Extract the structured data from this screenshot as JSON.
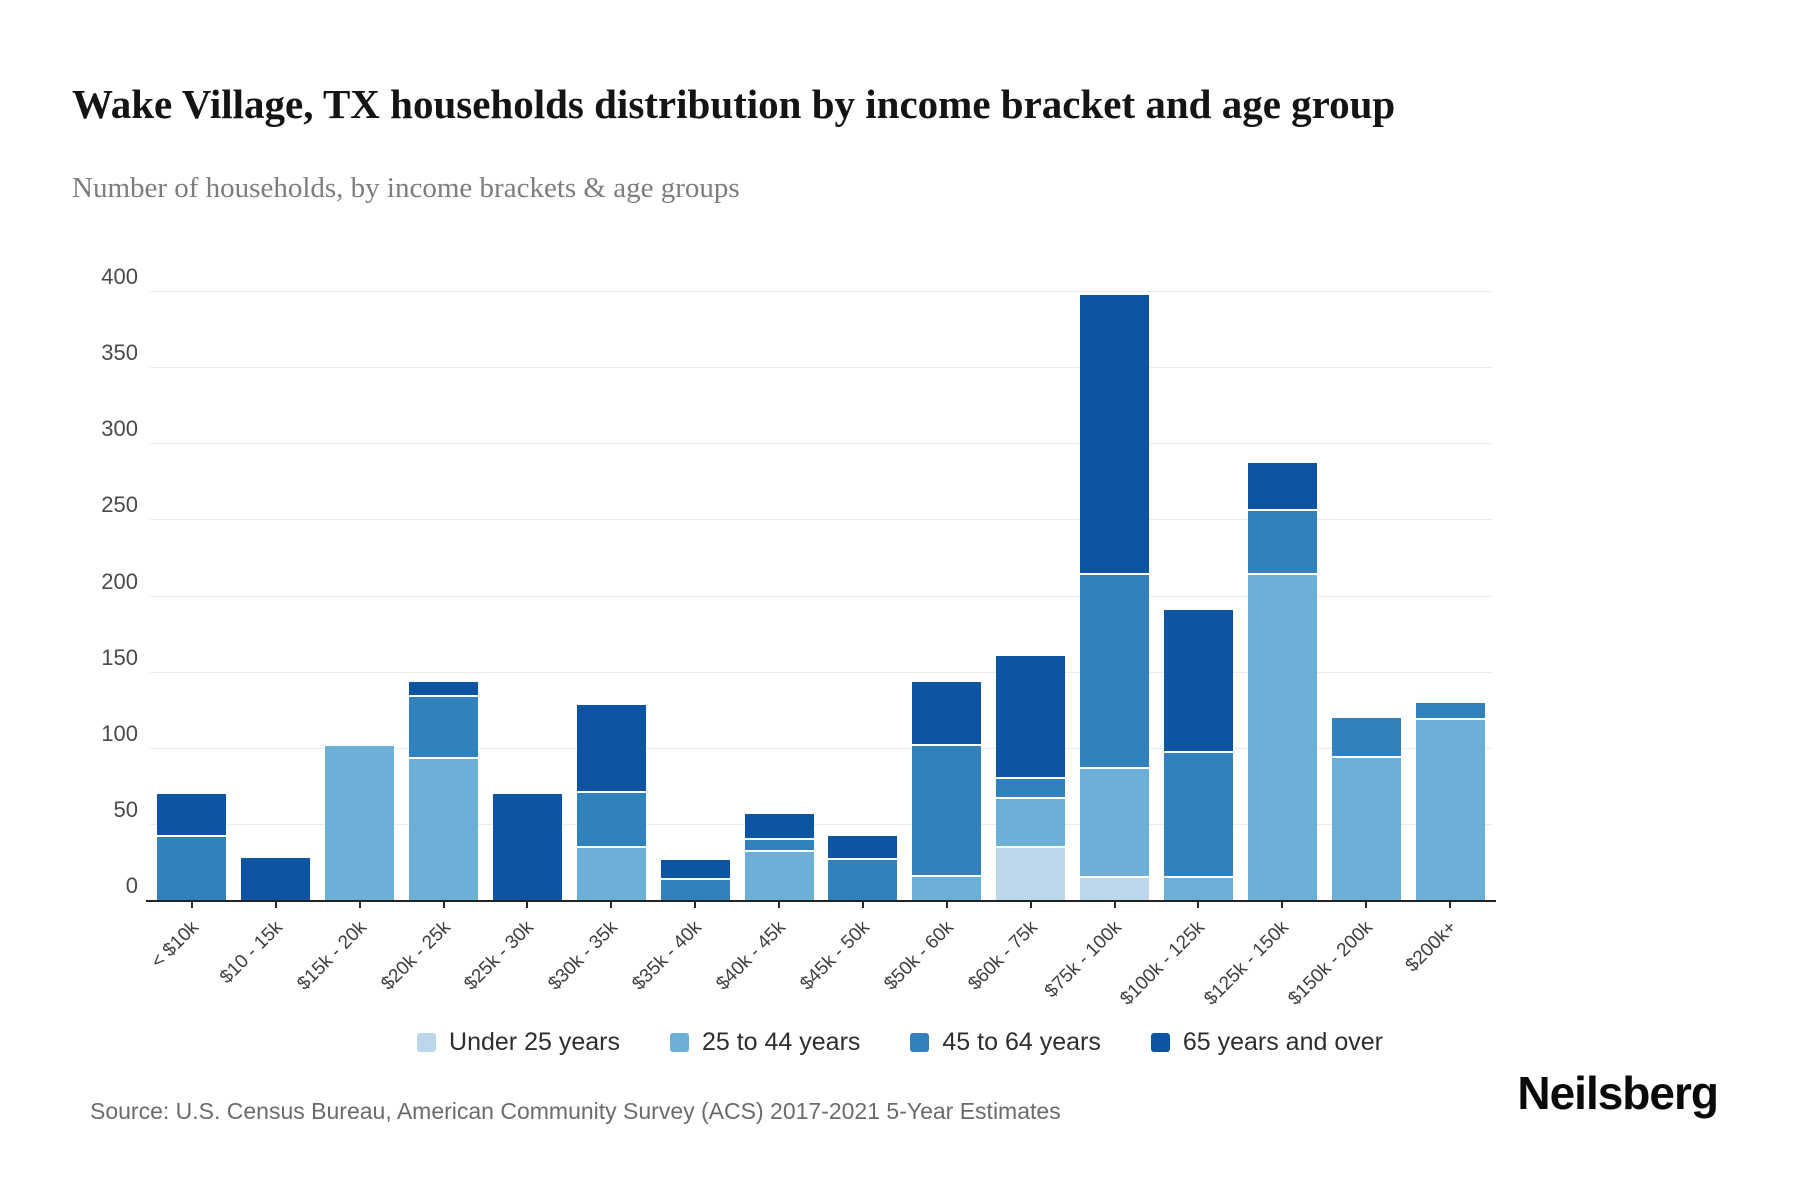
{
  "title": "Wake Village, TX households distribution by income bracket and age group",
  "subtitle": "Number of households, by income brackets & age groups",
  "source_text": "Source: U.S. Census Bureau, American Community Survey (ACS) 2017-2021 5-Year Estimates",
  "branding": "Neilsberg",
  "chart_data": {
    "type": "bar",
    "stacked": true,
    "title": "Wake Village, TX households distribution by income bracket and age group",
    "subtitle": "Number of households, by income brackets & age groups",
    "xlabel": "",
    "ylabel": "Number of households",
    "ylim": [
      0,
      400
    ],
    "yticks": [
      0,
      50,
      100,
      150,
      200,
      250,
      300,
      350,
      400
    ],
    "grid": true,
    "legend_position": "bottom",
    "categories": [
      "< $10k",
      "$10 - 15k",
      "$15k - 20k",
      "$20k - 25k",
      "$25k - 30k",
      "$30k - 35k",
      "$35k - 40k",
      "$40k - 45k",
      "$45k - 50k",
      "$50k - 60k",
      "$60k - 75k",
      "$75k - 100k",
      "$100k - 125k",
      "$125k - 150k",
      "$150k - 200k",
      "$200k+"
    ],
    "series": [
      {
        "name": "Under 25 years",
        "color": "#bdd7ea",
        "values": [
          0,
          0,
          0,
          0,
          0,
          0,
          0,
          0,
          0,
          0,
          35,
          15,
          0,
          0,
          0,
          0
        ]
      },
      {
        "name": "25 to 44 years",
        "color": "#6baed6",
        "values": [
          0,
          0,
          102,
          93,
          0,
          35,
          0,
          32,
          0,
          16,
          32,
          72,
          15,
          214,
          94,
          119
        ]
      },
      {
        "name": "45 to 64 years",
        "color": "#3181bd",
        "values": [
          42,
          0,
          0,
          41,
          0,
          36,
          14,
          8,
          27,
          86,
          13,
          127,
          82,
          42,
          26,
          11
        ]
      },
      {
        "name": "65 years and over",
        "color": "#0d55a3",
        "values": [
          28,
          28,
          0,
          10,
          70,
          58,
          13,
          17,
          16,
          42,
          81,
          184,
          94,
          32,
          0,
          0
        ]
      }
    ],
    "totals": [
      70,
      28,
      102,
      144,
      70,
      129,
      27,
      57,
      43,
      144,
      161,
      398,
      191,
      288,
      120,
      130
    ]
  }
}
